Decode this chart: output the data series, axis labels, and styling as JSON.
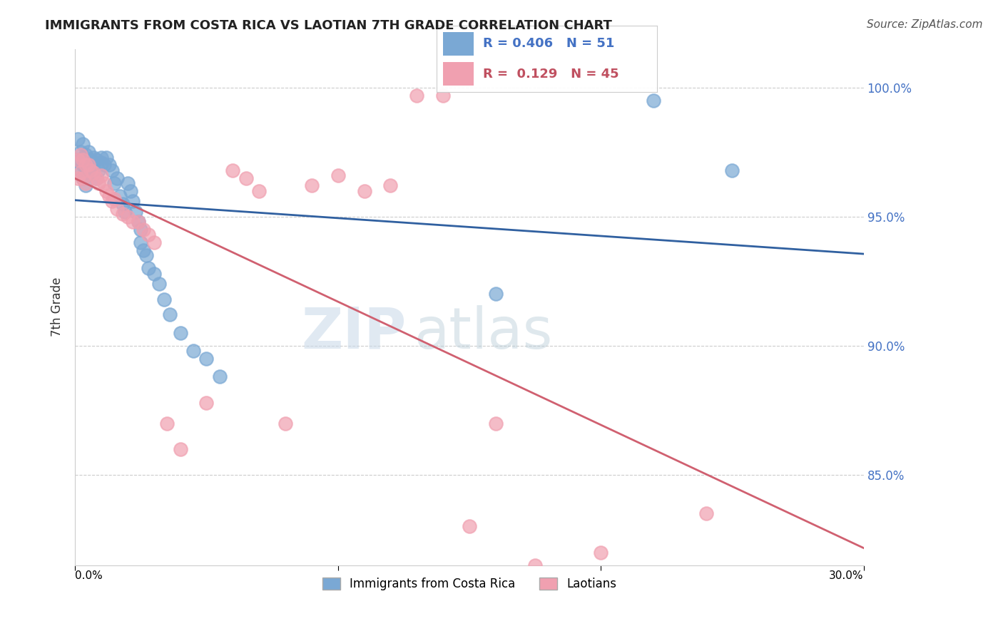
{
  "title": "IMMIGRANTS FROM COSTA RICA VS LAOTIAN 7TH GRADE CORRELATION CHART",
  "source": "Source: ZipAtlas.com",
  "ylabel": "7th Grade",
  "y_ticks": [
    0.85,
    0.9,
    0.95,
    1.0
  ],
  "y_tick_labels": [
    "85.0%",
    "90.0%",
    "95.0%",
    "100.0%"
  ],
  "xlim": [
    0.0,
    0.3
  ],
  "ylim": [
    0.815,
    1.015
  ],
  "blue_R": 0.406,
  "blue_N": 51,
  "pink_R": 0.129,
  "pink_N": 45,
  "blue_color": "#7aa8d4",
  "pink_color": "#f0a0b0",
  "blue_line_color": "#3060a0",
  "pink_line_color": "#d06070",
  "legend_blue_label": "Immigrants from Costa Rica",
  "legend_pink_label": "Laotians",
  "watermark_zip": "ZIP",
  "watermark_atlas": "atlas",
  "blue_x": [
    0.001,
    0.001,
    0.002,
    0.002,
    0.003,
    0.003,
    0.003,
    0.004,
    0.004,
    0.004,
    0.005,
    0.005,
    0.006,
    0.006,
    0.007,
    0.007,
    0.008,
    0.008,
    0.009,
    0.01,
    0.01,
    0.011,
    0.012,
    0.013,
    0.014,
    0.015,
    0.016,
    0.017,
    0.018,
    0.019,
    0.02,
    0.021,
    0.022,
    0.023,
    0.024,
    0.025,
    0.025,
    0.026,
    0.027,
    0.028,
    0.03,
    0.032,
    0.034,
    0.036,
    0.04,
    0.045,
    0.05,
    0.055,
    0.16,
    0.22,
    0.25
  ],
  "blue_y": [
    0.98,
    0.972,
    0.975,
    0.968,
    0.978,
    0.97,
    0.965,
    0.974,
    0.968,
    0.962,
    0.975,
    0.97,
    0.972,
    0.967,
    0.973,
    0.967,
    0.972,
    0.965,
    0.968,
    0.973,
    0.971,
    0.97,
    0.973,
    0.97,
    0.968,
    0.963,
    0.965,
    0.958,
    0.955,
    0.952,
    0.963,
    0.96,
    0.956,
    0.952,
    0.948,
    0.945,
    0.94,
    0.937,
    0.935,
    0.93,
    0.928,
    0.924,
    0.918,
    0.912,
    0.905,
    0.898,
    0.895,
    0.888,
    0.92,
    0.995,
    0.968
  ],
  "pink_x": [
    0.001,
    0.001,
    0.002,
    0.002,
    0.003,
    0.003,
    0.004,
    0.004,
    0.005,
    0.006,
    0.007,
    0.008,
    0.009,
    0.01,
    0.011,
    0.012,
    0.013,
    0.014,
    0.015,
    0.016,
    0.018,
    0.02,
    0.022,
    0.024,
    0.026,
    0.028,
    0.03,
    0.035,
    0.04,
    0.05,
    0.06,
    0.065,
    0.07,
    0.08,
    0.09,
    0.1,
    0.11,
    0.12,
    0.13,
    0.14,
    0.15,
    0.16,
    0.175,
    0.2,
    0.24
  ],
  "pink_y": [
    0.972,
    0.965,
    0.974,
    0.967,
    0.972,
    0.965,
    0.97,
    0.963,
    0.97,
    0.968,
    0.967,
    0.965,
    0.963,
    0.966,
    0.963,
    0.96,
    0.958,
    0.956,
    0.957,
    0.953,
    0.951,
    0.95,
    0.948,
    0.948,
    0.945,
    0.943,
    0.94,
    0.87,
    0.86,
    0.878,
    0.968,
    0.965,
    0.96,
    0.87,
    0.962,
    0.966,
    0.96,
    0.962,
    0.997,
    0.997,
    0.83,
    0.87,
    0.815,
    0.82,
    0.835
  ]
}
